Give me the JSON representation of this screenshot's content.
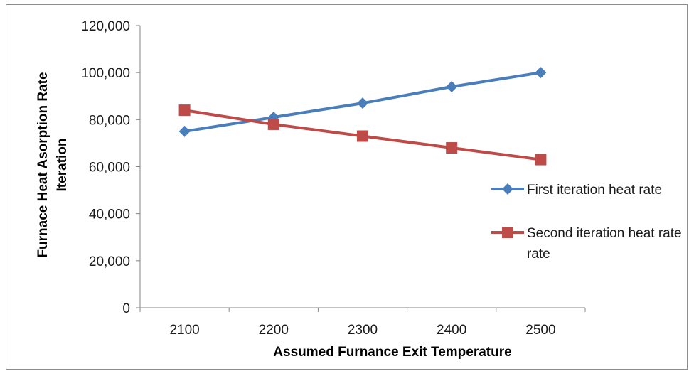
{
  "chart_data": {
    "type": "line",
    "categories": [
      "2100",
      "2200",
      "2300",
      "2400",
      "2500"
    ],
    "series": [
      {
        "name": "First iteration heat rate",
        "values": [
          75000,
          81000,
          87000,
          94000,
          100000
        ],
        "color": "#4a7ebb",
        "marker": "diamond"
      },
      {
        "name": "Second iteration heat rate",
        "values": [
          84000,
          78000,
          73000,
          68000,
          63000
        ],
        "color": "#be4b48",
        "marker": "square"
      }
    ],
    "xlabel": "Assumed Furnance Exit Temperature",
    "ylabel_lines": [
      "Furnace Heat Asorption Rate",
      "Iteration"
    ],
    "ylim": [
      0,
      120000
    ],
    "yticks": [
      "0",
      "20,000",
      "40,000",
      "60,000",
      "80,000",
      "100,000",
      "120,000"
    ],
    "grid": false,
    "legend": {
      "position": "right",
      "entries": [
        {
          "lines": [
            "First iteration heat rate"
          ]
        },
        {
          "lines": [
            "Second iteration heat rate",
            "rate"
          ]
        }
      ]
    }
  }
}
